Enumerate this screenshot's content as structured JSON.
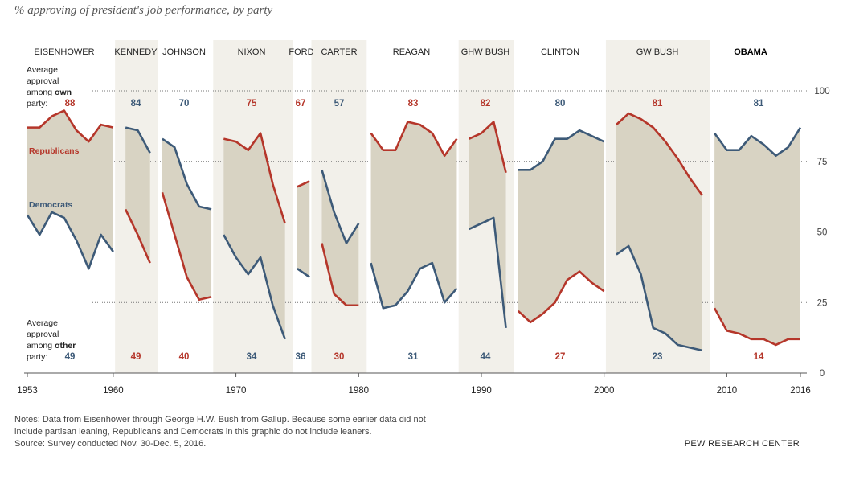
{
  "title": "% approving of president's job performance, by party",
  "labels": {
    "own_line1": "Average",
    "own_line2": "approval",
    "own_line3_prefix": "among ",
    "own_line3_bold": "own",
    "own_line4": "party:",
    "other_line1": "Average",
    "other_line2": "approval",
    "other_line3_prefix": "among ",
    "other_line3_bold": "other",
    "other_line4": "party:",
    "republicans": "Republicans",
    "democrats": "Democrats"
  },
  "notes": {
    "line1": "Notes: Data from Eisenhower through George H.W. Bush from Gallup. Because some earlier data did not",
    "line2": "include partisan leaning, Republicans and Democrats in this graphic do not include leaners.",
    "line3": "Source: Survey conducted Nov. 30-Dec. 5, 2016."
  },
  "source_org": "PEW RESEARCH CENTER",
  "colors": {
    "republican": "#b5362a",
    "democrat": "#3d5a78",
    "fill": "#d8d3c3",
    "band": "#f2f0ea"
  },
  "chart_data": {
    "type": "line",
    "x_ticks": [
      "1953",
      "1960",
      "1970",
      "1980",
      "1990",
      "2000",
      "2010",
      "2016"
    ],
    "y_ticks": [
      "0",
      "25",
      "50",
      "75",
      "100"
    ],
    "ylim": [
      0,
      100
    ],
    "xlim": [
      1953,
      2016
    ],
    "presidencies": [
      {
        "name": "EISENHOWER",
        "party": "R",
        "shaded": false,
        "own_avg": "88",
        "other_avg": "49",
        "rep": [
          [
            1953,
            87
          ],
          [
            1954,
            87
          ],
          [
            1955,
            91
          ],
          [
            1956,
            93
          ],
          [
            1957,
            86
          ],
          [
            1958,
            82
          ],
          [
            1959,
            88
          ],
          [
            1960,
            87
          ]
        ],
        "dem": [
          [
            1953,
            56
          ],
          [
            1954,
            49
          ],
          [
            1955,
            57
          ],
          [
            1956,
            55
          ],
          [
            1957,
            47
          ],
          [
            1958,
            37
          ],
          [
            1959,
            49
          ],
          [
            1960,
            43
          ]
        ]
      },
      {
        "name": "KENNEDY",
        "party": "D",
        "shaded": true,
        "own_avg": "84",
        "other_avg": "49",
        "rep": [
          [
            1961,
            58
          ],
          [
            1962,
            49
          ],
          [
            1963,
            39
          ]
        ],
        "dem": [
          [
            1961,
            87
          ],
          [
            1962,
            86
          ],
          [
            1963,
            78
          ]
        ]
      },
      {
        "name": "JOHNSON",
        "party": "D",
        "shaded": false,
        "own_avg": "70",
        "other_avg": "40",
        "rep": [
          [
            1964,
            64
          ],
          [
            1965,
            49
          ],
          [
            1966,
            34
          ],
          [
            1967,
            26
          ],
          [
            1968,
            27
          ]
        ],
        "dem": [
          [
            1964,
            83
          ],
          [
            1965,
            80
          ],
          [
            1966,
            67
          ],
          [
            1967,
            59
          ],
          [
            1968,
            58
          ]
        ]
      },
      {
        "name": "NIXON",
        "party": "R",
        "shaded": true,
        "own_avg": "75",
        "other_avg": "34",
        "rep": [
          [
            1969,
            83
          ],
          [
            1970,
            82
          ],
          [
            1971,
            79
          ],
          [
            1972,
            85
          ],
          [
            1973,
            67
          ],
          [
            1974,
            53
          ]
        ],
        "dem": [
          [
            1969,
            49
          ],
          [
            1970,
            41
          ],
          [
            1971,
            35
          ],
          [
            1972,
            41
          ],
          [
            1973,
            24
          ],
          [
            1974,
            12
          ]
        ]
      },
      {
        "name": "FORD",
        "party": "R",
        "shaded": false,
        "own_avg": "67",
        "other_avg": "36",
        "rep": [
          [
            1975,
            66
          ],
          [
            1976,
            68
          ]
        ],
        "dem": [
          [
            1975,
            37
          ],
          [
            1976,
            34
          ]
        ]
      },
      {
        "name": "CARTER",
        "party": "D",
        "shaded": true,
        "own_avg": "57",
        "other_avg": "30",
        "rep": [
          [
            1977,
            46
          ],
          [
            1978,
            28
          ],
          [
            1979,
            24
          ],
          [
            1980,
            24
          ]
        ],
        "dem": [
          [
            1977,
            72
          ],
          [
            1978,
            57
          ],
          [
            1979,
            46
          ],
          [
            1980,
            53
          ]
        ]
      },
      {
        "name": "REAGAN",
        "party": "R",
        "shaded": false,
        "own_avg": "83",
        "other_avg": "31",
        "rep": [
          [
            1981,
            85
          ],
          [
            1982,
            79
          ],
          [
            1983,
            79
          ],
          [
            1984,
            89
          ],
          [
            1985,
            88
          ],
          [
            1986,
            85
          ],
          [
            1987,
            77
          ],
          [
            1988,
            83
          ]
        ],
        "dem": [
          [
            1981,
            39
          ],
          [
            1982,
            23
          ],
          [
            1983,
            24
          ],
          [
            1984,
            29
          ],
          [
            1985,
            37
          ],
          [
            1986,
            39
          ],
          [
            1987,
            25
          ],
          [
            1988,
            30
          ]
        ]
      },
      {
        "name": "GHW BUSH",
        "party": "R",
        "shaded": true,
        "own_avg": "82",
        "other_avg": "44",
        "rep": [
          [
            1989,
            83
          ],
          [
            1990,
            85
          ],
          [
            1991,
            89
          ],
          [
            1992,
            71
          ]
        ],
        "dem": [
          [
            1989,
            51
          ],
          [
            1990,
            53
          ],
          [
            1991,
            55
          ],
          [
            1992,
            16
          ]
        ]
      },
      {
        "name": "CLINTON",
        "party": "D",
        "shaded": false,
        "own_avg": "80",
        "other_avg": "27",
        "rep": [
          [
            1993,
            22
          ],
          [
            1994,
            18
          ],
          [
            1995,
            21
          ],
          [
            1996,
            25
          ],
          [
            1997,
            33
          ],
          [
            1998,
            36
          ],
          [
            1999,
            32
          ],
          [
            2000,
            29
          ]
        ],
        "dem": [
          [
            1993,
            72
          ],
          [
            1994,
            72
          ],
          [
            1995,
            75
          ],
          [
            1996,
            83
          ],
          [
            1997,
            83
          ],
          [
            1998,
            86
          ],
          [
            1999,
            84
          ],
          [
            2000,
            82
          ]
        ]
      },
      {
        "name": "GW BUSH",
        "party": "R",
        "shaded": true,
        "own_avg": "81",
        "other_avg": "23",
        "rep": [
          [
            2001,
            88
          ],
          [
            2002,
            92
          ],
          [
            2003,
            90
          ],
          [
            2004,
            87
          ],
          [
            2005,
            82
          ],
          [
            2006,
            76
          ],
          [
            2007,
            69
          ],
          [
            2008,
            63
          ]
        ],
        "dem": [
          [
            2001,
            42
          ],
          [
            2002,
            45
          ],
          [
            2003,
            35
          ],
          [
            2004,
            16
          ],
          [
            2005,
            14
          ],
          [
            2006,
            10
          ],
          [
            2007,
            9
          ],
          [
            2008,
            8
          ]
        ]
      },
      {
        "name": "OBAMA",
        "party": "D",
        "shaded": false,
        "own_avg": "81",
        "other_avg": "14",
        "rep": [
          [
            2009,
            23
          ],
          [
            2010,
            15
          ],
          [
            2011,
            14
          ],
          [
            2012,
            12
          ],
          [
            2013,
            12
          ],
          [
            2014,
            10
          ],
          [
            2015,
            12
          ],
          [
            2016,
            12
          ]
        ],
        "dem": [
          [
            2009,
            85
          ],
          [
            2010,
            79
          ],
          [
            2011,
            79
          ],
          [
            2012,
            84
          ],
          [
            2013,
            81
          ],
          [
            2014,
            77
          ],
          [
            2015,
            80
          ],
          [
            2016,
            87
          ]
        ]
      }
    ]
  }
}
